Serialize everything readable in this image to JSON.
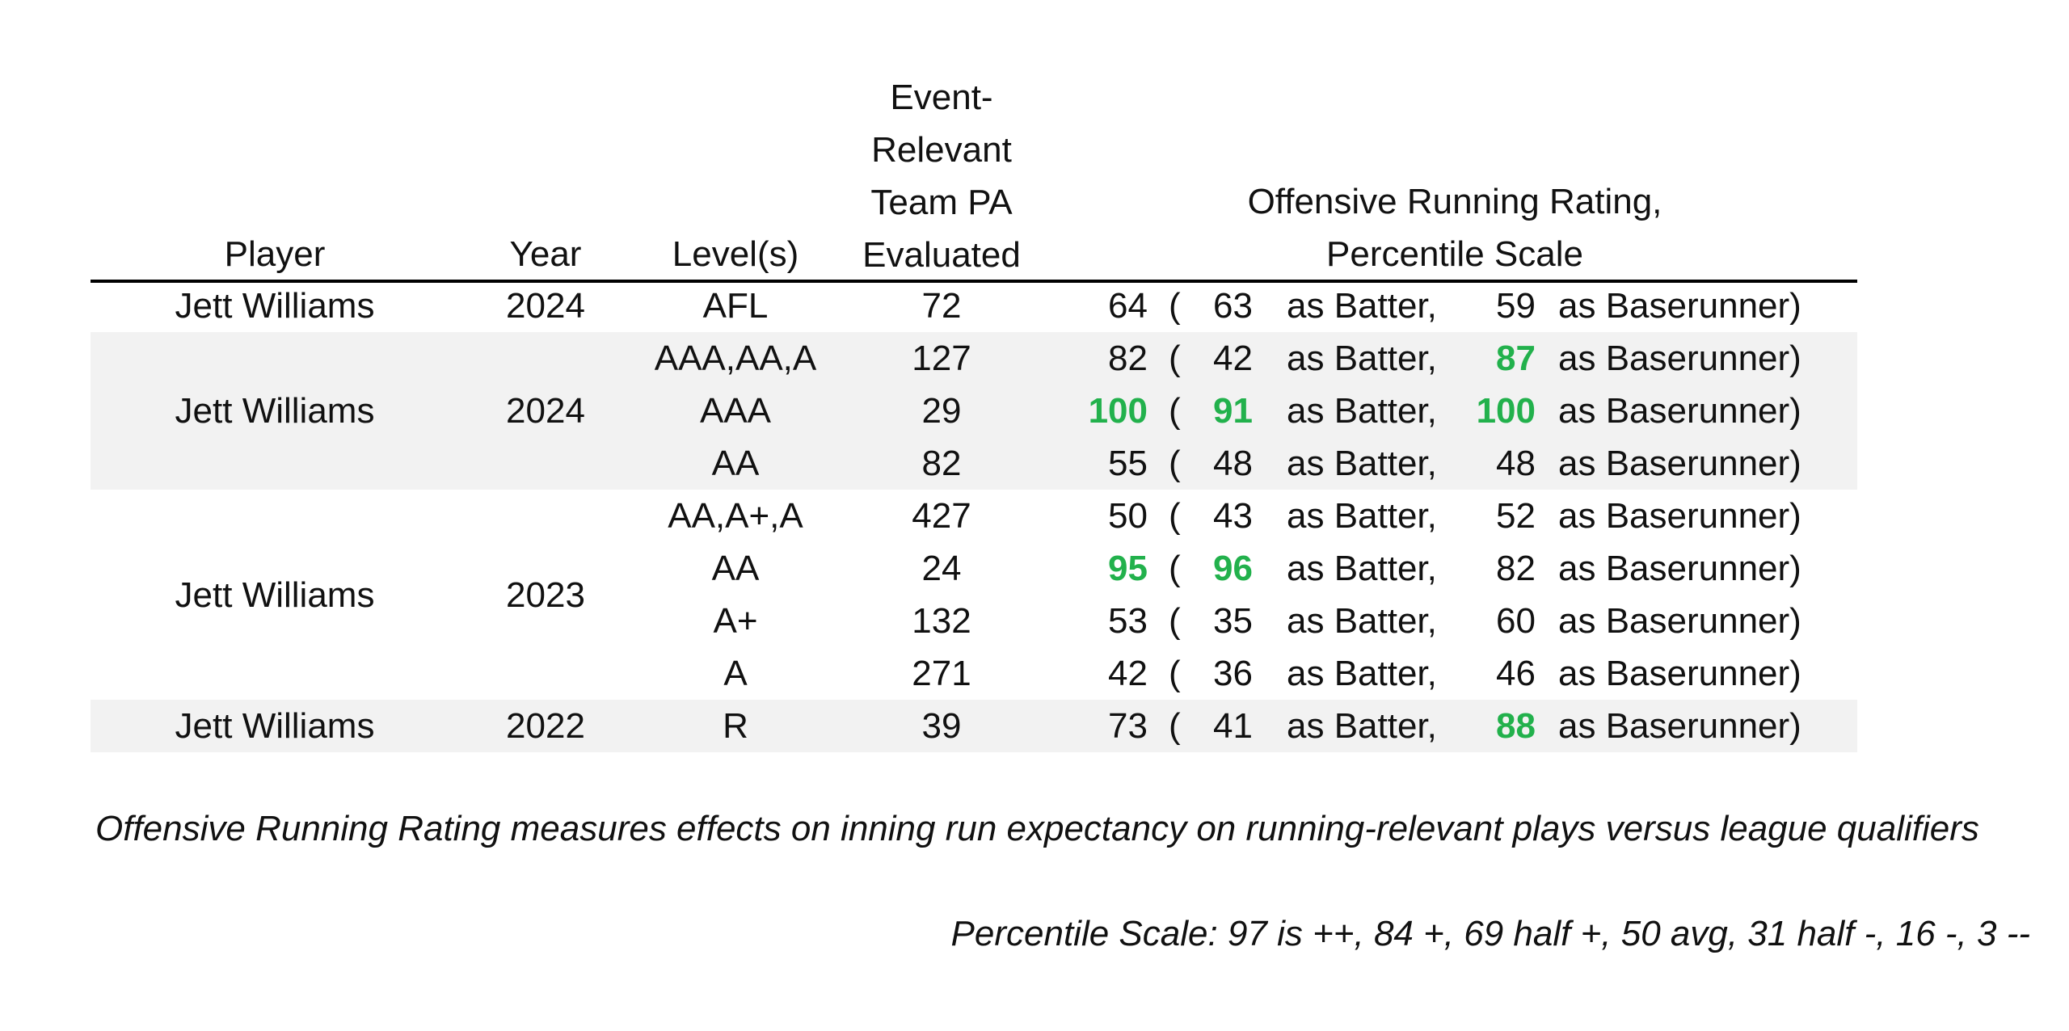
{
  "headers": {
    "player": "Player",
    "year": "Year",
    "levels": "Level(s)",
    "pa": [
      "Event-",
      "Relevant",
      "Team PA",
      "Evaluated"
    ],
    "rating": [
      "Offensive Running Rating,",
      "Percentile Scale"
    ]
  },
  "phrases": {
    "open_paren": "(",
    "as_batter": "as Batter,",
    "as_baserunner": "as Baserunner)"
  },
  "groups": [
    {
      "player": "Jett Williams",
      "year": "2024"
    },
    {
      "player": "Jett Williams",
      "year": "2024"
    },
    {
      "player": "Jett Williams",
      "year": "2023"
    },
    {
      "player": "Jett Williams",
      "year": "2022"
    }
  ],
  "rows": [
    {
      "level": "AFL",
      "pa": "72",
      "overall": "64",
      "batter": "63",
      "runner": "59",
      "hl": []
    },
    {
      "level": "AAA,AA,A",
      "pa": "127",
      "overall": "82",
      "batter": "42",
      "runner": "87",
      "hl": [
        "runner"
      ]
    },
    {
      "level": "AAA",
      "pa": "29",
      "overall": "100",
      "batter": "91",
      "runner": "100",
      "hl": [
        "overall",
        "batter",
        "runner"
      ]
    },
    {
      "level": "AA",
      "pa": "82",
      "overall": "55",
      "batter": "48",
      "runner": "48",
      "hl": []
    },
    {
      "level": "AA,A+,A",
      "pa": "427",
      "overall": "50",
      "batter": "43",
      "runner": "52",
      "hl": []
    },
    {
      "level": "AA",
      "pa": "24",
      "overall": "95",
      "batter": "96",
      "runner": "82",
      "hl": [
        "overall",
        "batter"
      ]
    },
    {
      "level": "A+",
      "pa": "132",
      "overall": "53",
      "batter": "35",
      "runner": "60",
      "hl": []
    },
    {
      "level": "A",
      "pa": "271",
      "overall": "42",
      "batter": "36",
      "runner": "46",
      "hl": []
    },
    {
      "level": "R",
      "pa": "39",
      "overall": "73",
      "batter": "41",
      "runner": "88",
      "hl": [
        "runner"
      ]
    }
  ],
  "footnote": "Offensive Running Rating measures effects on inning run expectancy on running-relevant plays versus league qualifiers",
  "scale_note": "Percentile Scale: 97 is ++, 84 +, 69 half +, 50 avg, 31 half -, 16 -, 3 --",
  "colors": {
    "highlight": "#22b14c",
    "band": "#f2f2f2"
  }
}
